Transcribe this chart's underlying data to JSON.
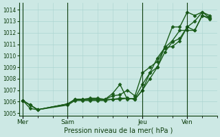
{
  "bg_color": "#cce8e4",
  "grid_color": "#aad4d0",
  "line_color": "#1a5c1a",
  "dark_line_color": "#0d3d0d",
  "xlabel": "Pression niveau de la mer( hPa )",
  "day_labels": [
    "Mer",
    "Sam",
    "Jeu",
    "Ven"
  ],
  "day_positions": [
    0,
    6,
    16,
    22
  ],
  "xlim": [
    -0.5,
    26
  ],
  "ylim": [
    1004.8,
    1014.6
  ],
  "yticks": [
    1005,
    1006,
    1007,
    1008,
    1009,
    1010,
    1011,
    1012,
    1013,
    1014
  ],
  "series": [
    {
      "x": [
        0,
        1,
        2,
        6,
        7,
        8,
        9,
        10,
        11,
        12,
        13,
        14,
        15,
        16,
        17,
        18,
        19,
        20,
        21,
        22,
        23,
        24,
        25
      ],
      "y": [
        1006.1,
        1005.7,
        1005.3,
        1005.8,
        1006.2,
        1006.2,
        1006.3,
        1006.3,
        1006.2,
        1006.7,
        1007.5,
        1006.2,
        1006.3,
        1007.5,
        1008.5,
        1009.0,
        1010.8,
        1012.5,
        1012.5,
        1013.8,
        1013.5,
        1013.8,
        1013.5
      ],
      "marker": "D",
      "markersize": 2.5,
      "linewidth": 1.0
    },
    {
      "x": [
        0,
        1,
        2,
        6,
        7,
        8,
        9,
        10,
        11,
        12,
        13,
        14,
        15,
        16,
        17,
        18,
        19,
        20,
        21,
        22,
        23,
        24,
        25
      ],
      "y": [
        1006.1,
        1005.7,
        1005.3,
        1005.8,
        1006.2,
        1006.2,
        1006.2,
        1006.2,
        1006.2,
        1006.2,
        1006.3,
        1006.3,
        1006.2,
        1007.0,
        1008.5,
        1009.8,
        1010.7,
        1010.8,
        1011.3,
        1012.5,
        1013.0,
        1013.8,
        1013.3
      ],
      "marker": "D",
      "markersize": 2.5,
      "linewidth": 1.0
    },
    {
      "x": [
        0,
        1,
        2,
        6,
        7,
        8,
        9,
        10,
        11,
        12,
        13,
        14,
        15,
        16,
        17,
        18,
        19,
        20,
        21,
        22,
        23,
        24,
        25
      ],
      "y": [
        1006.1,
        1005.7,
        1005.3,
        1005.8,
        1006.2,
        1006.2,
        1006.2,
        1006.2,
        1006.2,
        1006.5,
        1006.6,
        1007.0,
        1006.5,
        1008.5,
        1009.0,
        1009.5,
        1010.7,
        1011.3,
        1012.2,
        1012.2,
        1012.2,
        1013.5,
        1013.3
      ],
      "marker": "D",
      "markersize": 2.5,
      "linewidth": 1.0
    },
    {
      "x": [
        0,
        1,
        2,
        6,
        7,
        8,
        9,
        10,
        11,
        12,
        13,
        14,
        15,
        16,
        17,
        18,
        19,
        20,
        21,
        22,
        23,
        24,
        25
      ],
      "y": [
        1006.1,
        1005.4,
        1005.3,
        1005.7,
        1006.1,
        1006.1,
        1006.1,
        1006.1,
        1006.1,
        1006.2,
        1006.2,
        1006.3,
        1006.2,
        1007.0,
        1008.0,
        1009.0,
        1010.3,
        1011.2,
        1011.5,
        1012.5,
        1012.2,
        1013.5,
        1013.2
      ],
      "marker": "D",
      "markersize": 2.5,
      "linewidth": 1.0
    }
  ]
}
